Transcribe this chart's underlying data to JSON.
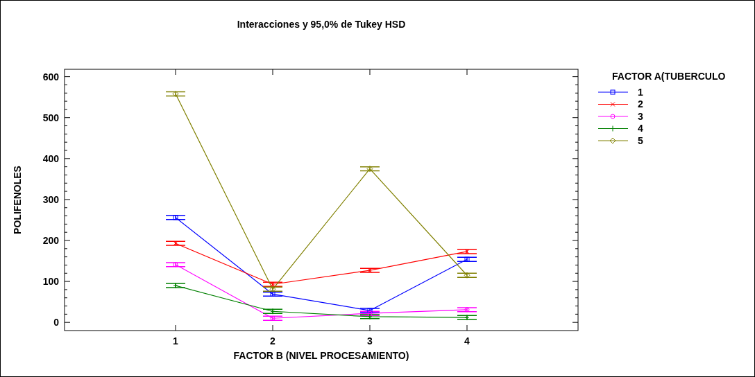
{
  "chart_data": {
    "type": "line",
    "title": "Interacciones y 95,0% de Tukey HSD",
    "xlabel": "FACTOR B (NIVEL PROCESAMIENTO)",
    "ylabel": "POLIFENOLES",
    "legend_title": "FACTOR A(TUBERCULO",
    "legend": "right",
    "grid": false,
    "categories": [
      "1",
      "2",
      "3",
      "4"
    ],
    "ylim": [
      -20,
      618
    ],
    "yticks": [
      0,
      100,
      200,
      300,
      400,
      500,
      600
    ],
    "series": [
      {
        "name": "1",
        "color": "#0000ff",
        "marker": "square",
        "values": [
          256,
          69,
          29,
          154
        ],
        "errors": [
          5,
          5,
          5,
          5
        ]
      },
      {
        "name": "2",
        "color": "#ff0000",
        "marker": "cross",
        "values": [
          193,
          93,
          127,
          173
        ],
        "errors": [
          5,
          5,
          5,
          5
        ]
      },
      {
        "name": "3",
        "color": "#ff00ff",
        "marker": "circle",
        "values": [
          141,
          10,
          22,
          31
        ],
        "errors": [
          5,
          5,
          5,
          5
        ]
      },
      {
        "name": "4",
        "color": "#008000",
        "marker": "plus",
        "values": [
          90,
          27,
          14,
          12
        ],
        "errors": [
          5,
          5,
          5,
          5
        ]
      },
      {
        "name": "5",
        "color": "#808000",
        "marker": "diamond",
        "values": [
          558,
          81,
          375,
          115
        ],
        "errors": [
          5,
          5,
          5,
          5
        ]
      }
    ]
  }
}
